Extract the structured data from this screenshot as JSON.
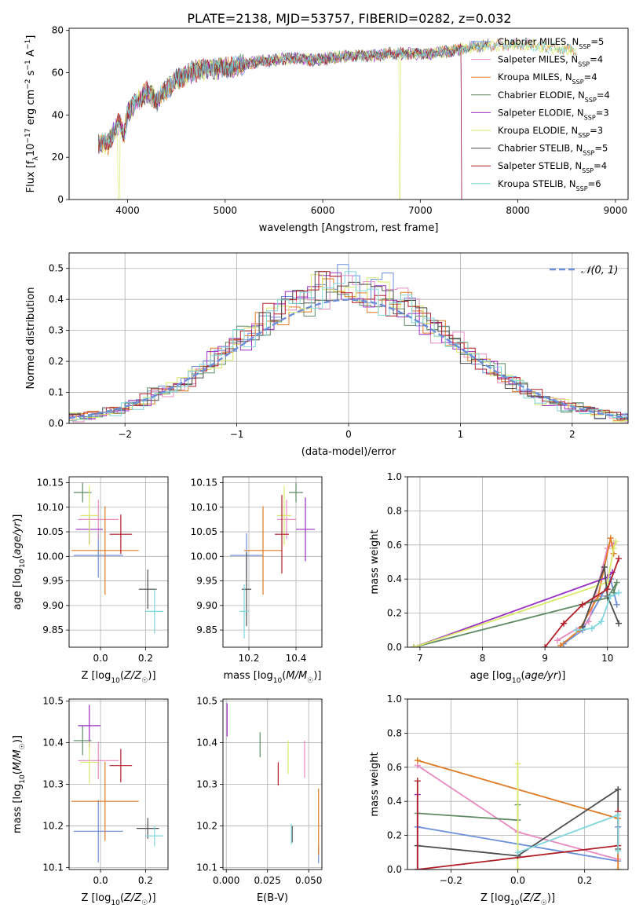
{
  "figure_title": "PLATE=2138, MJD=53757, FIBERID=0282, z=0.032",
  "colors": {
    "Chabrier MILES": "#6b8fd9",
    "Salpeter MILES": "#e88ac0",
    "Kroupa MILES": "#e07a24",
    "Chabrier ELODIE": "#5f8a64",
    "Salpeter ELODIE": "#9b2fc2",
    "Kroupa ELODIE": "#d9e86a",
    "Chabrier STELIB": "#4d4d4d",
    "Salpeter STELIB": "#b01e28",
    "Kroupa STELIB": "#7fd6dc"
  },
  "chart_data": [
    {
      "id": "spectrum",
      "type": "line",
      "title": "PLATE=2138, MJD=53757, FIBERID=0282, z=0.032",
      "xlabel": "wavelength [Angstrom, rest frame]",
      "ylabel": "Flux [f_λ10^-17 erg cm^-2 s^-1 A^-1]",
      "xlim": [
        3400,
        9130
      ],
      "ylim": [
        0,
        81
      ],
      "xticks": [
        4000,
        5000,
        6000,
        7000,
        8000,
        9000
      ],
      "yticks": [
        0,
        20,
        40,
        60,
        80
      ],
      "grid": false,
      "legend_position": "right",
      "legend": [
        {
          "model": "Chabrier MILES",
          "label": "Chabrier MILES, N",
          "sub": "SSP",
          "n": "=5"
        },
        {
          "model": "Salpeter MILES",
          "label": "Salpeter MILES, N",
          "sub": "SSP",
          "n": "=4"
        },
        {
          "model": "Kroupa MILES",
          "label": "Kroupa MILES, N",
          "sub": "SSP",
          "n": "=4"
        },
        {
          "model": "Chabrier ELODIE",
          "label": "Chabrier ELODIE, N",
          "sub": "SSP",
          "n": "=4"
        },
        {
          "model": "Salpeter ELODIE",
          "label": "Salpeter ELODIE, N",
          "sub": "SSP",
          "n": "=3"
        },
        {
          "model": "Kroupa ELODIE",
          "label": "Kroupa ELODIE, N",
          "sub": "SSP",
          "n": "=3"
        },
        {
          "model": "Chabrier STELIB",
          "label": "Chabrier STELIB, N",
          "sub": "SSP",
          "n": "=5"
        },
        {
          "model": "Salpeter STELIB",
          "label": "Salpeter STELIB, N",
          "sub": "SSP",
          "n": "=4"
        },
        {
          "model": "Kroupa STELIB",
          "label": "Kroupa STELIB, N",
          "sub": "SSP",
          "n": "=6"
        }
      ],
      "continuum": {
        "wavelength": [
          3700,
          3800,
          3870,
          3920,
          3960,
          4000,
          4100,
          4200,
          4300,
          4400,
          4500,
          4700,
          4900,
          5100,
          5300,
          5500,
          5700,
          5900,
          6100,
          6300,
          6500,
          6700,
          6900,
          7100,
          7300,
          7500,
          7700,
          7900,
          8100,
          8300,
          8500,
          8700,
          8850
        ],
        "flux": [
          27,
          26,
          33,
          37,
          30,
          41,
          47,
          51,
          47,
          52,
          57,
          61,
          62,
          63,
          65,
          66,
          67,
          66,
          67,
          68,
          68,
          69,
          69,
          69,
          70,
          72,
          73,
          73,
          73,
          72,
          71,
          70,
          69
        ]
      },
      "model_cutoffs": [
        {
          "model": "Kroupa ELODIE",
          "wavelength": 6790,
          "flux_after": 0
        },
        {
          "model": "Chabrier ELODIE",
          "wavelength": 7420,
          "flux_after": 0
        },
        {
          "model": "Salpeter ELODIE",
          "wavelength": 7420,
          "flux_after": 0
        },
        {
          "model": "Salpeter STELIB",
          "wavelength": 7420,
          "flux_after": 0
        },
        {
          "model": "Kroupa ELODIE",
          "wavelength": 3910,
          "flux_after": 0
        }
      ]
    },
    {
      "id": "residuals",
      "type": "step",
      "xlabel": "(data-model)/error",
      "ylabel": "Normed distribution",
      "xlim": [
        -2.5,
        2.5
      ],
      "ylim": [
        0,
        0.55
      ],
      "xticks": [
        -2,
        -1,
        0,
        1,
        2
      ],
      "yticks": [
        0.0,
        0.1,
        0.2,
        0.3,
        0.4,
        0.5
      ],
      "grid": true,
      "legend": [
        {
          "label": "𝒩(0, 1)",
          "model": "Chabrier MILES",
          "style": "dashed"
        }
      ],
      "reference_curve": "gaussian(0,1)",
      "histogram_profile": {
        "center": [
          -2.4,
          -2.2,
          -2.0,
          -1.8,
          -1.6,
          -1.4,
          -1.2,
          -1.0,
          -0.8,
          -0.6,
          -0.4,
          -0.2,
          0.0,
          0.2,
          0.4,
          0.6,
          0.8,
          1.0,
          1.2,
          1.4,
          1.6,
          1.8,
          2.0,
          2.2,
          2.4
        ],
        "value": [
          0.02,
          0.035,
          0.05,
          0.08,
          0.11,
          0.15,
          0.2,
          0.26,
          0.31,
          0.37,
          0.41,
          0.43,
          0.45,
          0.43,
          0.41,
          0.37,
          0.3,
          0.25,
          0.2,
          0.15,
          0.1,
          0.07,
          0.05,
          0.035,
          0.02
        ]
      }
    },
    {
      "id": "age_vs_Z",
      "type": "scatter-errorbar",
      "xlabel": "Z [log10(Z/Z☉)]",
      "ylabel": "age  [log10(age/yr)]",
      "xlim": [
        -0.14,
        0.3
      ],
      "ylim": [
        9.815,
        10.162
      ],
      "xticks": [
        0.0,
        0.2
      ],
      "xticklabels": [
        "0.0",
        "0.2"
      ],
      "yticks": [
        9.85,
        9.9,
        9.95,
        10.0,
        10.05,
        10.1,
        10.15
      ],
      "grid": true,
      "points": [
        {
          "model": "Chabrier MILES",
          "x": -0.01,
          "y": 10.002,
          "xerr": 0.11,
          "yerr": 0.045
        },
        {
          "model": "Salpeter MILES",
          "x": -0.01,
          "y": 10.075,
          "xerr": 0.09,
          "yerr": 0.04
        },
        {
          "model": "Kroupa MILES",
          "x": 0.02,
          "y": 10.012,
          "xerr": 0.15,
          "yerr": 0.09
        },
        {
          "model": "Chabrier ELODIE",
          "x": -0.08,
          "y": 10.13,
          "xerr": 0.04,
          "yerr": 0.02
        },
        {
          "model": "Salpeter ELODIE",
          "x": -0.05,
          "y": 10.055,
          "xerr": 0.06,
          "yerr": 0.03
        },
        {
          "model": "Kroupa ELODIE",
          "x": -0.05,
          "y": 10.083,
          "xerr": 0.04,
          "yerr": 0.06
        },
        {
          "model": "Chabrier STELIB",
          "x": 0.21,
          "y": 9.933,
          "xerr": 0.04,
          "yerr": 0.04
        },
        {
          "model": "Salpeter STELIB",
          "x": 0.09,
          "y": 10.045,
          "xerr": 0.05,
          "yerr": 0.04
        },
        {
          "model": "Kroupa STELIB",
          "x": 0.24,
          "y": 9.888,
          "xerr": 0.04,
          "yerr": 0.045
        }
      ]
    },
    {
      "id": "age_vs_mass",
      "type": "scatter-errorbar",
      "xlabel": "mass [log10(M/M☉)]",
      "ylabel": "",
      "xlim": [
        10.09,
        10.51
      ],
      "ylim": [
        9.815,
        10.162
      ],
      "xticks": [
        10.2,
        10.4
      ],
      "xticklabels": [
        "10.2",
        "10.4"
      ],
      "yticks": [
        9.85,
        9.9,
        9.95,
        10.0,
        10.05,
        10.1,
        10.15
      ],
      "grid": true,
      "points": [
        {
          "model": "Chabrier MILES",
          "x": 10.19,
          "y": 10.002,
          "xerr": 0.07,
          "yerr": 0.045
        },
        {
          "model": "Salpeter MILES",
          "x": 10.36,
          "y": 10.075,
          "xerr": 0.04,
          "yerr": 0.04
        },
        {
          "model": "Kroupa MILES",
          "x": 10.26,
          "y": 10.012,
          "xerr": 0.08,
          "yerr": 0.09
        },
        {
          "model": "Chabrier ELODIE",
          "x": 10.4,
          "y": 10.13,
          "xerr": 0.03,
          "yerr": 0.02
        },
        {
          "model": "Salpeter ELODIE",
          "x": 10.44,
          "y": 10.055,
          "xerr": 0.04,
          "yerr": 0.065
        },
        {
          "model": "Kroupa ELODIE",
          "x": 10.35,
          "y": 10.083,
          "xerr": 0.03,
          "yerr": 0.06
        },
        {
          "model": "Chabrier STELIB",
          "x": 10.19,
          "y": 9.933,
          "xerr": 0.02,
          "yerr": 0.075
        },
        {
          "model": "Salpeter STELIB",
          "x": 10.34,
          "y": 10.045,
          "xerr": 0.03,
          "yerr": 0.08
        },
        {
          "model": "Kroupa STELIB",
          "x": 10.18,
          "y": 9.888,
          "xerr": 0.02,
          "yerr": 0.055
        }
      ]
    },
    {
      "id": "mass_weight_vs_age",
      "type": "line",
      "xlabel": "age  [log10(age/yr)]",
      "ylabel": "mass weight",
      "xlim": [
        6.8,
        10.33
      ],
      "ylim": [
        0,
        1.0
      ],
      "xticks": [
        7,
        8,
        9,
        10
      ],
      "yticks": [
        0.0,
        0.2,
        0.4,
        0.6,
        0.8,
        1.0
      ],
      "grid": true,
      "series": [
        {
          "model": "Chabrier MILES",
          "x": [
            9.3,
            9.6,
            9.9,
            10.05,
            10.15
          ],
          "y": [
            0.02,
            0.1,
            0.3,
            0.4,
            0.25
          ]
        },
        {
          "model": "Salpeter MILES",
          "x": [
            9.2,
            9.7,
            10.0,
            10.1
          ],
          "y": [
            0.04,
            0.15,
            0.58,
            0.61
          ]
        },
        {
          "model": "Kroupa MILES",
          "x": [
            9.25,
            9.55,
            9.85,
            10.05,
            10.1
          ],
          "y": [
            0.01,
            0.1,
            0.3,
            0.64,
            0.55
          ]
        },
        {
          "model": "Chabrier ELODIE",
          "x": [
            6.9,
            10.0,
            10.15,
            10.1
          ],
          "y": [
            0.0,
            0.29,
            0.38,
            0.32
          ]
        },
        {
          "model": "Salpeter ELODIE",
          "x": [
            6.9,
            10.0,
            10.08
          ],
          "y": [
            0.0,
            0.41,
            0.44
          ]
        },
        {
          "model": "Kroupa ELODIE",
          "x": [
            6.9,
            10.0,
            10.1,
            10.13
          ],
          "y": [
            0.0,
            0.38,
            0.58,
            0.62
          ]
        },
        {
          "model": "Chabrier STELIB",
          "x": [
            9.6,
            9.95,
            10.0,
            10.18
          ],
          "y": [
            0.12,
            0.47,
            0.3,
            0.14
          ]
        },
        {
          "model": "Salpeter STELIB",
          "x": [
            9.0,
            9.3,
            9.6,
            10.0,
            10.18
          ],
          "y": [
            0.0,
            0.14,
            0.25,
            0.34,
            0.52
          ]
        },
        {
          "model": "Kroupa STELIB",
          "x": [
            9.5,
            9.75,
            9.9,
            10.05,
            10.18
          ],
          "y": [
            0.1,
            0.11,
            0.15,
            0.3,
            0.32
          ]
        }
      ]
    },
    {
      "id": "mass_vs_Z",
      "type": "scatter-errorbar",
      "xlabel": "Z [log10(Z/Z☉)]",
      "ylabel": "mass [log10(M/M☉)]",
      "xlim": [
        -0.14,
        0.3
      ],
      "ylim": [
        10.095,
        10.505
      ],
      "xticks": [
        0.0,
        0.2
      ],
      "xticklabels": [
        "0.0",
        "0.2"
      ],
      "yticks": [
        10.1,
        10.2,
        10.3,
        10.4,
        10.5
      ],
      "grid": true,
      "points": [
        {
          "model": "Chabrier MILES",
          "x": -0.01,
          "y": 10.187,
          "xerr": 0.11,
          "yerr": 0.075
        },
        {
          "model": "Salpeter MILES",
          "x": -0.01,
          "y": 10.357,
          "xerr": 0.09,
          "yerr": 0.045
        },
        {
          "model": "Kroupa MILES",
          "x": 0.02,
          "y": 10.259,
          "xerr": 0.15,
          "yerr": 0.095
        },
        {
          "model": "Chabrier ELODIE",
          "x": -0.08,
          "y": 10.405,
          "xerr": 0.04,
          "yerr": 0.035
        },
        {
          "model": "Salpeter ELODIE",
          "x": -0.05,
          "y": 10.441,
          "xerr": 0.05,
          "yerr": 0.05
        },
        {
          "model": "Kroupa ELODIE",
          "x": -0.05,
          "y": 10.353,
          "xerr": 0.04,
          "yerr": 0.05
        },
        {
          "model": "Chabrier STELIB",
          "x": 0.21,
          "y": 10.194,
          "xerr": 0.05,
          "yerr": 0.025
        },
        {
          "model": "Salpeter STELIB",
          "x": 0.09,
          "y": 10.345,
          "xerr": 0.05,
          "yerr": 0.04
        },
        {
          "model": "Kroupa STELIB",
          "x": 0.24,
          "y": 10.176,
          "xerr": 0.04,
          "yerr": 0.025
        }
      ]
    },
    {
      "id": "mass_vs_EBV",
      "type": "scatter-errorbar",
      "xlabel": "E(B-V)",
      "ylabel": "",
      "xlim": [
        -0.002,
        0.058
      ],
      "ylim": [
        10.095,
        10.505
      ],
      "xticks": [
        0.0,
        0.025,
        0.05
      ],
      "xticklabels": [
        "0.000",
        "0.025",
        "0.050"
      ],
      "yticks": [
        10.1,
        10.2,
        10.3,
        10.4,
        10.5
      ],
      "grid": true,
      "points": [
        {
          "model": "Chabrier MILES",
          "x": 0.056,
          "y": 10.13,
          "xerr": 0,
          "yerr": 0.02
        },
        {
          "model": "Salpeter MILES",
          "x": 0.0475,
          "y": 10.36,
          "xerr": 0,
          "yerr": 0.045
        },
        {
          "model": "Kroupa MILES",
          "x": 0.056,
          "y": 10.21,
          "xerr": 0,
          "yerr": 0.08
        },
        {
          "model": "Chabrier ELODIE",
          "x": 0.0205,
          "y": 10.395,
          "xerr": 0,
          "yerr": 0.03
        },
        {
          "model": "Salpeter ELODIE",
          "x": 0.0005,
          "y": 10.455,
          "xerr": 0,
          "yerr": 0.04
        },
        {
          "model": "Kroupa ELODIE",
          "x": 0.0375,
          "y": 10.365,
          "xerr": 0,
          "yerr": 0.04
        },
        {
          "model": "Chabrier STELIB",
          "x": 0.04,
          "y": 10.18,
          "xerr": 0,
          "yerr": 0.02
        },
        {
          "model": "Salpeter STELIB",
          "x": 0.0315,
          "y": 10.325,
          "xerr": 0,
          "yerr": 0.028
        },
        {
          "model": "Kroupa STELIB",
          "x": 0.0395,
          "y": 10.18,
          "xerr": 0,
          "yerr": 0.025
        }
      ]
    },
    {
      "id": "mass_weight_vs_Z",
      "type": "line",
      "xlabel": "Z [log10(Z/Z☉)]",
      "ylabel": "mass weight",
      "xlim": [
        -0.33,
        0.33
      ],
      "ylim": [
        0,
        1.0
      ],
      "xticks": [
        -0.2,
        0.0,
        0.2
      ],
      "xticklabels": [
        "−0.2",
        "0.0",
        "0.2"
      ],
      "yticks": [
        0.0,
        0.2,
        0.4,
        0.6,
        0.8,
        1.0
      ],
      "grid": true,
      "series": [
        {
          "model": "Chabrier MILES",
          "x": [
            -0.3,
            0.0,
            0.3,
            0.3
          ],
          "y": [
            0.25,
            0.15,
            0.05,
            0.25
          ]
        },
        {
          "model": "Salpeter MILES",
          "x": [
            -0.3,
            0.0,
            0.3
          ],
          "y": [
            0.61,
            0.22,
            0.06
          ]
        },
        {
          "model": "Kroupa MILES",
          "x": [
            -0.3,
            0.3,
            0.3
          ],
          "y": [
            0.64,
            0.3,
            0.0
          ]
        },
        {
          "model": "Chabrier ELODIE",
          "x": [
            -0.3,
            0.0,
            0.0
          ],
          "y": [
            0.33,
            0.29,
            0.38
          ]
        },
        {
          "model": "Salpeter ELODIE",
          "x": [
            -0.3,
            -0.3
          ],
          "y": [
            0.0,
            0.44
          ]
        },
        {
          "model": "Kroupa ELODIE",
          "x": [
            0.0,
            0.0
          ],
          "y": [
            0.0,
            0.62
          ]
        },
        {
          "model": "Chabrier STELIB",
          "x": [
            -0.3,
            0.0,
            0.3,
            0.3
          ],
          "y": [
            0.14,
            0.08,
            0.47,
            0.12
          ]
        },
        {
          "model": "Salpeter STELIB",
          "x": [
            -0.3,
            -0.3,
            0.3,
            0.3
          ],
          "y": [
            0.52,
            0.0,
            0.14,
            0.34
          ]
        },
        {
          "model": "Kroupa STELIB",
          "x": [
            0.0,
            0.3,
            0.3
          ],
          "y": [
            0.1,
            0.32,
            0.11
          ]
        }
      ]
    }
  ]
}
